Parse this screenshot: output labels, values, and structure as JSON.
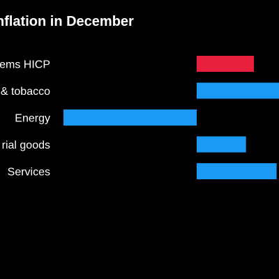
{
  "chart_data": {
    "type": "bar",
    "orientation": "horizontal",
    "title": "nflation in December",
    "categories": [
      "tems HICP",
      "& tobacco",
      "Energy",
      "rial goods",
      "Services"
    ],
    "values": [
      0.43,
      0.63,
      -1.0,
      0.37,
      0.6
    ],
    "colors": [
      "#e8203d",
      "#1a9af5",
      "#1a9af5",
      "#1a9af5",
      "#1a9af5"
    ],
    "xlim": [
      -1.0,
      0.63
    ],
    "grid": false,
    "legend": "none"
  }
}
